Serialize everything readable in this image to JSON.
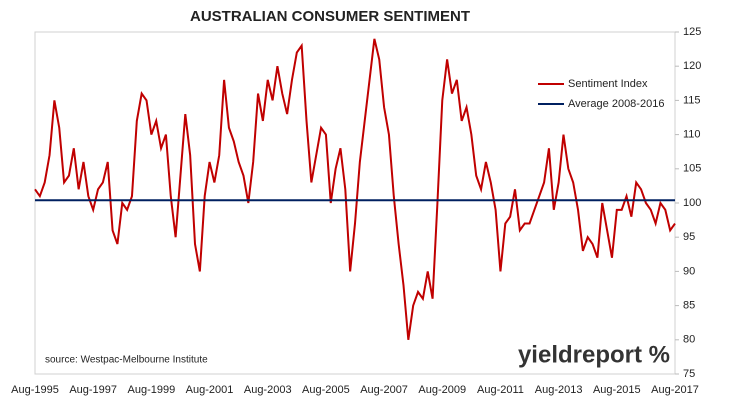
{
  "chart_data": {
    "type": "line",
    "title": "AUSTRALIAN CONSUMER SENTIMENT",
    "annotation": "source: Westpac-Melbourne Institute",
    "watermark": "yieldreport %",
    "categories": [
      "Aug-1995",
      null,
      null,
      null,
      null,
      null,
      null,
      null,
      null,
      null,
      null,
      null,
      "Aug-1997",
      null,
      null,
      null,
      null,
      null,
      null,
      null,
      null,
      null,
      null,
      null,
      "Aug-1999",
      null,
      null,
      null,
      null,
      null,
      null,
      null,
      null,
      null,
      null,
      null,
      "Aug-2001",
      null,
      null,
      null,
      null,
      null,
      null,
      null,
      null,
      null,
      null,
      null,
      "Aug-2003",
      null,
      null,
      null,
      null,
      null,
      null,
      null,
      null,
      null,
      null,
      null,
      "Aug-2005",
      null,
      null,
      null,
      null,
      null,
      null,
      null,
      null,
      null,
      null,
      null,
      "Aug-2007",
      null,
      null,
      null,
      null,
      null,
      null,
      null,
      null,
      null,
      null,
      null,
      "Aug-2009",
      null,
      null,
      null,
      null,
      null,
      null,
      null,
      null,
      null,
      null,
      null,
      "Aug-2011",
      null,
      null,
      null,
      null,
      null,
      null,
      null,
      null,
      null,
      null,
      null,
      "Aug-2013",
      null,
      null,
      null,
      null,
      null,
      null,
      null,
      null,
      null,
      null,
      null,
      "Aug-2015",
      null,
      null,
      null,
      null,
      null,
      null,
      null,
      null,
      null,
      null,
      null,
      "Aug-2017"
    ],
    "series": [
      {
        "name": "Sentiment Index",
        "color": "#c00000",
        "values": [
          102,
          101,
          103,
          107,
          115,
          111,
          103,
          104,
          108,
          102,
          106,
          101,
          99,
          102,
          103,
          106,
          96,
          94,
          100,
          99,
          101,
          112,
          116,
          115,
          110,
          112,
          108,
          110,
          101,
          95,
          104,
          113,
          107,
          94,
          90,
          101,
          106,
          103,
          107,
          118,
          111,
          109,
          106,
          104,
          100,
          106,
          116,
          112,
          118,
          115,
          120,
          116,
          113,
          118,
          122,
          123,
          112,
          103,
          107,
          111,
          110,
          100,
          105,
          108,
          102,
          90,
          97,
          106,
          112,
          118,
          124,
          121,
          114,
          110,
          101,
          94,
          88,
          80,
          85,
          87,
          86,
          90,
          86,
          100,
          115,
          121,
          116,
          118,
          112,
          114,
          110,
          104,
          102,
          106,
          103,
          99,
          90,
          97,
          98,
          102,
          96,
          97,
          97,
          99,
          101,
          103,
          108,
          99,
          103,
          110,
          105,
          103,
          99,
          93,
          95,
          94,
          92,
          100,
          96,
          92,
          99,
          99,
          101,
          98,
          103,
          102,
          100,
          99,
          97,
          100,
          99,
          96,
          97
        ]
      }
    ],
    "average": {
      "name": "Average 2008-2016",
      "color": "#002060",
      "value": 100.4
    },
    "ylim": [
      75,
      125
    ],
    "yticks": [
      75,
      80,
      85,
      90,
      95,
      100,
      105,
      110,
      115,
      120,
      125
    ],
    "y_axis_side": "right",
    "grid": false,
    "legend": "upper right"
  }
}
